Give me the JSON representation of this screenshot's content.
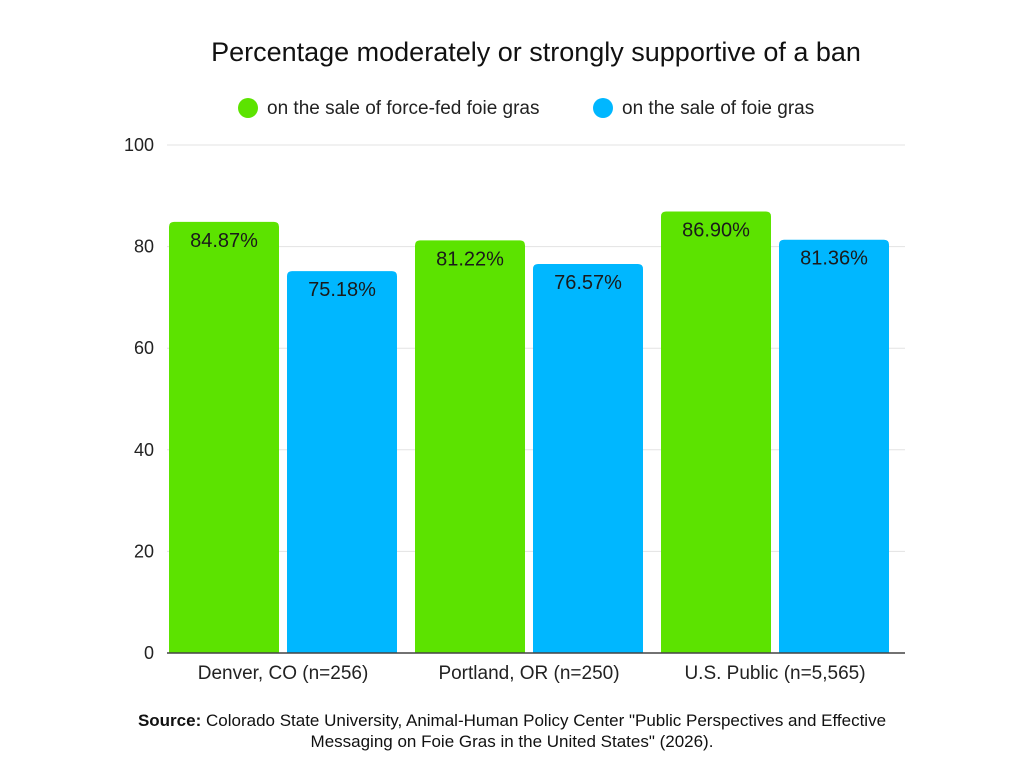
{
  "chart_data": {
    "type": "bar",
    "title": "Percentage moderately or strongly supportive of a ban",
    "categories": [
      "Denver, CO (n=256)",
      "Portland, OR (n=250)",
      "U.S. Public (n=5,565)"
    ],
    "series": [
      {
        "name": "on the sale of force-fed foie gras",
        "color": "#5ce300",
        "values": [
          84.87,
          81.22,
          86.9
        ],
        "labels": [
          "84.87%",
          "81.22%",
          "86.90%"
        ]
      },
      {
        "name": "on the sale of foie gras",
        "color": "#00b7ff",
        "values": [
          75.18,
          76.57,
          81.36
        ],
        "labels": [
          "75.18%",
          "76.57%",
          "81.36%"
        ]
      }
    ],
    "yticks": [
      0,
      20,
      40,
      60,
      80,
      100
    ],
    "ylim": [
      0,
      100
    ],
    "grid": true,
    "legend": "top-center",
    "xlabel": "",
    "ylabel": ""
  },
  "source": {
    "label": "Source:",
    "text": "Colorado State University, Animal-Human Policy Center \"Public Perspectives and Effective Messaging on Foie Gras in the United States\" (2026)."
  }
}
